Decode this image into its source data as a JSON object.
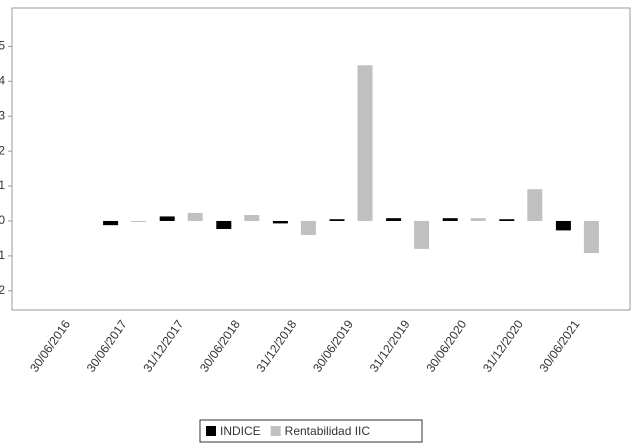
{
  "chart_data": {
    "type": "bar",
    "categories": [
      "30/06/2016",
      "30/06/2017",
      "31/12/2017",
      "30/06/2018",
      "31/12/2018",
      "30/06/2019",
      "31/12/2019",
      "30/06/2020",
      "31/12/2020",
      "30/06/2021"
    ],
    "series": [
      {
        "name": "INDICE",
        "color": "#000000",
        "values": [
          null,
          -0.12,
          0.13,
          -0.23,
          -0.07,
          0.05,
          0.08,
          0.08,
          0.05,
          -0.27
        ]
      },
      {
        "name": "Rentabilidad IIC",
        "color": "#c0c0c0",
        "values": [
          null,
          -0.02,
          0.23,
          0.17,
          -0.4,
          4.46,
          -0.8,
          0.08,
          0.91,
          -0.92
        ]
      }
    ],
    "ylim": [
      -2.55,
      6.1
    ],
    "yticks": [
      -2,
      -1,
      0,
      1,
      2,
      3,
      4,
      5
    ],
    "legend": "bottom"
  }
}
